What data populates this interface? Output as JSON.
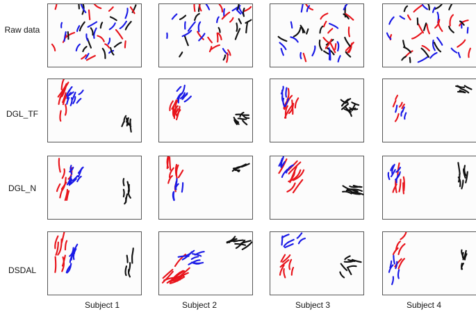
{
  "figure": {
    "row_labels": [
      "Raw data",
      "DGL_TF",
      "DGL_N",
      "DSDAL"
    ],
    "column_labels": [
      "Subject 1",
      "Subject 2",
      "Subject 3",
      "Subject 4"
    ]
  },
  "chart_data": {
    "type": "scatter",
    "grid": false,
    "axes_ticks": false,
    "layout": "4x4 panel grid",
    "colors": {
      "class_red": "#e8141b",
      "class_blue": "#1a1ae6",
      "class_black": "#111111"
    },
    "description_of_panels": "Each panel is a 2-D embedding of trajectory fragments per subject; three classes (red, blue, black).",
    "panels": [
      {
        "method": "Raw data",
        "subject": "Subject 1",
        "pattern": "scattered"
      },
      {
        "method": "Raw data",
        "subject": "Subject 2",
        "pattern": "scattered"
      },
      {
        "method": "Raw data",
        "subject": "Subject 3",
        "pattern": "scattered"
      },
      {
        "method": "Raw data",
        "subject": "Subject 4",
        "pattern": "scattered"
      },
      {
        "method": "DGL_TF",
        "subject": "Subject 1",
        "pattern": "clustered"
      },
      {
        "method": "DGL_TF",
        "subject": "Subject 2",
        "pattern": "clustered"
      },
      {
        "method": "DGL_TF",
        "subject": "Subject 3",
        "pattern": "clustered"
      },
      {
        "method": "DGL_TF",
        "subject": "Subject 4",
        "pattern": "clustered"
      },
      {
        "method": "DGL_N",
        "subject": "Subject 1",
        "pattern": "clustered"
      },
      {
        "method": "DGL_N",
        "subject": "Subject 2",
        "pattern": "clustered"
      },
      {
        "method": "DGL_N",
        "subject": "Subject 3",
        "pattern": "clustered"
      },
      {
        "method": "DGL_N",
        "subject": "Subject 4",
        "pattern": "clustered"
      },
      {
        "method": "DSDAL",
        "subject": "Subject 1",
        "pattern": "clustered"
      },
      {
        "method": "DSDAL",
        "subject": "Subject 2",
        "pattern": "clustered"
      },
      {
        "method": "DSDAL",
        "subject": "Subject 3",
        "pattern": "clustered"
      },
      {
        "method": "DSDAL",
        "subject": "Subject 4",
        "pattern": "clustered"
      }
    ]
  }
}
